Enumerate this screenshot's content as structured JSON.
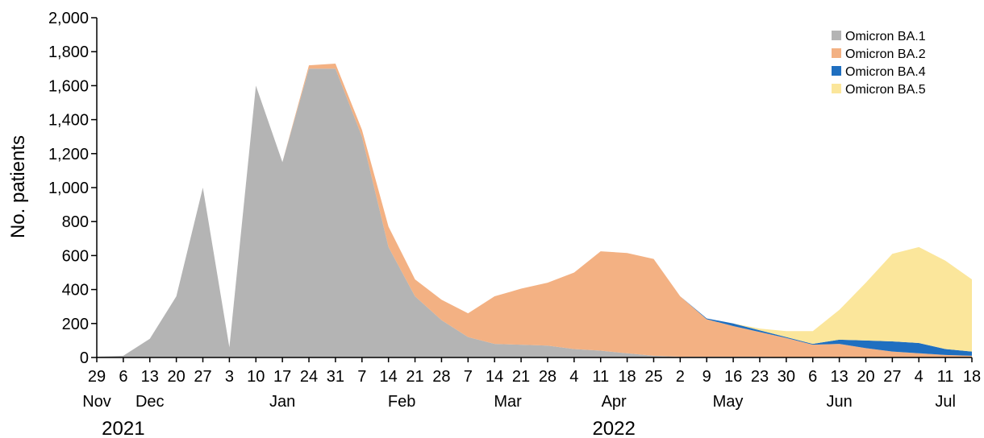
{
  "chart_data": {
    "type": "area",
    "stacked": true,
    "ylabel": "No. patients",
    "ylim": [
      0,
      2000
    ],
    "yticks": [
      0,
      200,
      400,
      600,
      800,
      1000,
      1200,
      1400,
      1600,
      1800,
      2000
    ],
    "ytick_labels": [
      "0",
      "200",
      "400",
      "600",
      "800",
      "1,000",
      "1,200",
      "1,400",
      "1,600",
      "1,800",
      "2,000"
    ],
    "x": [
      "2021-11-29",
      "2021-12-06",
      "2021-12-13",
      "2021-12-20",
      "2021-12-27",
      "2022-01-03",
      "2022-01-10",
      "2022-01-17",
      "2022-01-24",
      "2022-01-31",
      "2022-02-07",
      "2022-02-14",
      "2022-02-21",
      "2022-02-28",
      "2022-03-07",
      "2022-03-14",
      "2022-03-21",
      "2022-03-28",
      "2022-04-04",
      "2022-04-11",
      "2022-04-18",
      "2022-04-25",
      "2022-05-02",
      "2022-05-09",
      "2022-05-16",
      "2022-05-23",
      "2022-05-30",
      "2022-06-06",
      "2022-06-13",
      "2022-06-20",
      "2022-06-27",
      "2022-07-04",
      "2022-07-11",
      "2022-07-18"
    ],
    "xtick_labels": [
      "29",
      "6",
      "13",
      "20",
      "27",
      "3",
      "10",
      "17",
      "24",
      "31",
      "7",
      "14",
      "21",
      "28",
      "7",
      "14",
      "21",
      "28",
      "4",
      "11",
      "18",
      "25",
      "2",
      "9",
      "16",
      "23",
      "30",
      "6",
      "13",
      "20",
      "27",
      "4",
      "11",
      "18"
    ],
    "months": [
      {
        "label": "Nov",
        "index": 0
      },
      {
        "label": "Dec",
        "index": 2
      },
      {
        "label": "Jan",
        "index": 7
      },
      {
        "label": "Feb",
        "index": 11.5
      },
      {
        "label": "Mar",
        "index": 15.5
      },
      {
        "label": "Apr",
        "index": 19.5
      },
      {
        "label": "May",
        "index": 23.8
      },
      {
        "label": "Jun",
        "index": 28
      },
      {
        "label": "Jul",
        "index": 32
      }
    ],
    "years": [
      {
        "label": "2021",
        "index": 1
      },
      {
        "label": "2022",
        "index": 19.5
      }
    ],
    "legend_position": "top-right",
    "series": [
      {
        "name": "Omicron BA.1",
        "color": "#b4b4b4",
        "values": [
          5,
          10,
          110,
          360,
          1000,
          60,
          1600,
          1150,
          1700,
          1700,
          1300,
          650,
          360,
          220,
          120,
          80,
          75,
          70,
          50,
          40,
          25,
          10,
          5,
          5,
          5,
          5,
          0,
          0,
          0,
          0,
          0,
          0,
          0,
          0
        ]
      },
      {
        "name": "Omicron BA.2",
        "color": "#f3b183",
        "values": [
          0,
          0,
          0,
          0,
          0,
          0,
          0,
          0,
          20,
          30,
          40,
          120,
          100,
          120,
          140,
          280,
          330,
          370,
          450,
          585,
          590,
          570,
          355,
          220,
          180,
          145,
          115,
          75,
          80,
          55,
          35,
          25,
          15,
          10
        ]
      },
      {
        "name": "Omicron BA.4",
        "color": "#1f6fc0",
        "values": [
          0,
          0,
          0,
          0,
          0,
          0,
          0,
          0,
          0,
          0,
          0,
          0,
          0,
          0,
          0,
          0,
          0,
          0,
          0,
          0,
          0,
          0,
          0,
          5,
          15,
          10,
          5,
          5,
          25,
          45,
          60,
          60,
          35,
          25
        ]
      },
      {
        "name": "Omicron BA.5",
        "color": "#fbe69b",
        "values": [
          0,
          0,
          0,
          0,
          0,
          0,
          0,
          0,
          0,
          0,
          0,
          0,
          0,
          0,
          0,
          0,
          0,
          0,
          0,
          0,
          0,
          0,
          0,
          0,
          0,
          10,
          35,
          75,
          175,
          340,
          515,
          565,
          520,
          425
        ]
      }
    ]
  }
}
